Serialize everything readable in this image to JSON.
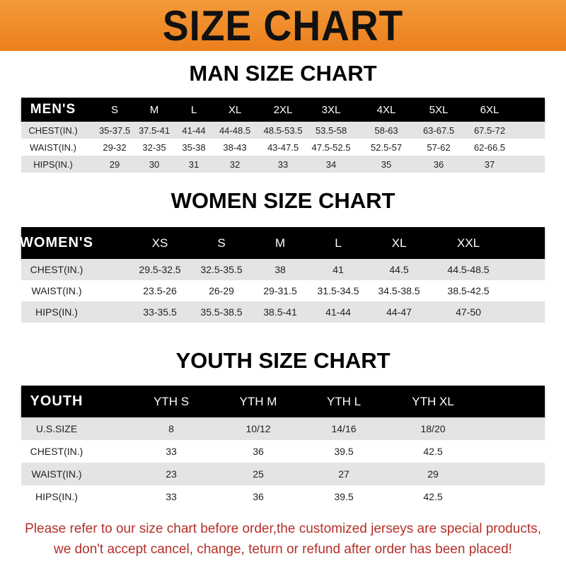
{
  "banner": {
    "title": "SIZE CHART",
    "color": "#ee861f"
  },
  "men": {
    "title": "MAN SIZE CHART",
    "header": [
      "MEN'S",
      "S",
      "M",
      "L",
      "XL",
      "2XL",
      "3XL",
      "4XL",
      "5XL",
      "6XL"
    ],
    "rows": [
      [
        "CHEST(IN.)",
        "35-37.5",
        "37.5-41",
        "41-44",
        "44-48.5",
        "48.5-53.5",
        "53.5-58",
        "58-63",
        "63-67.5",
        "67.5-72"
      ],
      [
        "WAIST(IN.)",
        "29-32",
        "32-35",
        "35-38",
        "38-43",
        "43-47.5",
        "47.5-52.5",
        "52.5-57",
        "57-62",
        "62-66.5"
      ],
      [
        "HIPS(IN.)",
        "29",
        "30",
        "31",
        "32",
        "33",
        "34",
        "35",
        "36",
        "37"
      ]
    ]
  },
  "women": {
    "title": "WOMEN SIZE CHART",
    "header": [
      "WOMEN'S",
      "XS",
      "S",
      "M",
      "L",
      "XL",
      "XXL"
    ],
    "rows": [
      [
        "CHEST(IN.)",
        "29.5-32.5",
        "32.5-35.5",
        "38",
        "41",
        "44.5",
        "44.5-48.5"
      ],
      [
        "WAIST(IN.)",
        "23.5-26",
        "26-29",
        "29-31.5",
        "31.5-34.5",
        "34.5-38.5",
        "38.5-42.5"
      ],
      [
        "HIPS(IN.)",
        "33-35.5",
        "35.5-38.5",
        "38.5-41",
        "41-44",
        "44-47",
        "47-50"
      ]
    ]
  },
  "youth": {
    "title": "YOUTH SIZE CHART",
    "header": [
      "YOUTH",
      "YTH S",
      "YTH M",
      "YTH L",
      "YTH XL"
    ],
    "rows": [
      [
        "U.S.SIZE",
        "8",
        "10/12",
        "14/16",
        "18/20"
      ],
      [
        "CHEST(IN.)",
        "33",
        "36",
        "39.5",
        "42.5"
      ],
      [
        "WAIST(IN.)",
        "23",
        "25",
        "27",
        "29"
      ],
      [
        "HIPS(IN.)",
        "33",
        "36",
        "39.5",
        "42.5"
      ]
    ]
  },
  "footer": {
    "line1": "Please refer to our size chart before order,the customized jerseys are special products,",
    "line2": "we don't accept cancel, change, teturn or refund after order has been placed!",
    "color": "#b4302a"
  }
}
